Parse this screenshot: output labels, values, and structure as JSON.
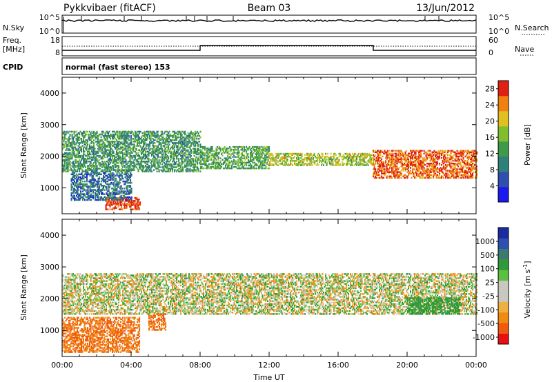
{
  "header": {
    "site": "Pykkvibaer (fitACF)",
    "beam": "Beam 03",
    "date": "13/Jun/2012"
  },
  "panels": {
    "nsky": {
      "label": "N.Sky",
      "left_ticks": [
        "10^5",
        "10^0"
      ],
      "right_ticks": [
        "10^5",
        "10^0"
      ],
      "right_label": "N.Search",
      "right_legend_line": "dotted"
    },
    "freq": {
      "label_line1": "Freq.",
      "label_line2": "[MHz]",
      "left_ticks": [
        "18",
        "8"
      ],
      "right_ticks": [
        "60",
        "0"
      ],
      "right_label": "Nave",
      "right_legend_line": "dotted"
    },
    "cpid": {
      "label": "CPID",
      "text": "normal (fast stereo) 153"
    }
  },
  "colors": {
    "frame": "#000000",
    "background": "#ffffff",
    "power_scale": [
      "#1a1aee",
      "#2f4fb0",
      "#2f7f7a",
      "#3e9a4a",
      "#7fbf2f",
      "#e0c020",
      "#f08010",
      "#e02010"
    ],
    "velocity_scale": [
      "#e81010",
      "#f05a10",
      "#f08a10",
      "#f0b040",
      "#c8c8c0",
      "#c8c8c0",
      "#5ac040",
      "#2f9a3a",
      "#3c7a70",
      "#2f4fb0",
      "#1a2aa0"
    ]
  },
  "chart_data": [
    {
      "type": "heatmap",
      "title": "",
      "xlabel": "Time UT",
      "ylabel": "Slant Range [km]",
      "xlim_hours": [
        0,
        24
      ],
      "ylim": [
        180,
        4500
      ],
      "x_ticks": [
        "00:00",
        "04:00",
        "08:00",
        "12:00",
        "16:00",
        "20:00",
        "00:00"
      ],
      "y_ticks": [
        1000,
        2000,
        3000,
        4000
      ],
      "colorbar": {
        "label": "Power [dB]",
        "ticks": [
          4,
          8,
          12,
          16,
          20,
          24,
          28
        ],
        "range": [
          0,
          30
        ]
      },
      "regions": [
        {
          "t_start": 0,
          "t_end": 8,
          "range_lo": 1500,
          "range_hi": 2800,
          "value": 12
        },
        {
          "t_start": 8,
          "t_end": 12,
          "range_lo": 1600,
          "range_hi": 2300,
          "value": 14
        },
        {
          "t_start": 12,
          "t_end": 18,
          "range_lo": 1700,
          "range_hi": 2100,
          "value": 18
        },
        {
          "t_start": 18,
          "t_end": 24,
          "range_lo": 1300,
          "range_hi": 2200,
          "value": 26
        },
        {
          "t_start": 2.5,
          "t_end": 4.5,
          "range_lo": 300,
          "range_hi": 700,
          "value": 28
        },
        {
          "t_start": 0.5,
          "t_end": 4,
          "range_lo": 600,
          "range_hi": 1500,
          "value": 8
        }
      ]
    },
    {
      "type": "heatmap",
      "title": "",
      "xlabel": "Time UT",
      "ylabel": "Slant Range [km]",
      "xlim_hours": [
        0,
        24
      ],
      "ylim": [
        180,
        4500
      ],
      "x_ticks": [
        "00:00",
        "04:00",
        "08:00",
        "12:00",
        "16:00",
        "20:00",
        "00:00"
      ],
      "y_ticks": [
        1000,
        2000,
        3000,
        4000
      ],
      "colorbar": {
        "label": "Velocity [m s^-1]",
        "ticks": [
          "1000",
          "500",
          "100",
          "25",
          "-25",
          "-100",
          "-500",
          "-1000"
        ]
      },
      "regions": [
        {
          "t_start": 0,
          "t_end": 24,
          "range_lo": 1500,
          "range_hi": 2800,
          "value": 0
        },
        {
          "t_start": 0,
          "t_end": 4.5,
          "range_lo": 300,
          "range_hi": 1400,
          "value": -300
        },
        {
          "t_start": 5,
          "t_end": 6,
          "range_lo": 1000,
          "range_hi": 1500,
          "value": -300
        },
        {
          "t_start": 20,
          "t_end": 23,
          "range_lo": 1500,
          "range_hi": 2000,
          "value": 150
        }
      ]
    }
  ]
}
